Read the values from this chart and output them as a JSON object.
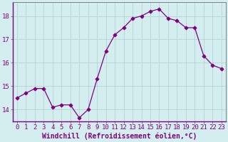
{
  "hours": [
    0,
    1,
    2,
    3,
    4,
    5,
    6,
    7,
    8,
    9,
    10,
    11,
    12,
    13,
    14,
    15,
    16,
    17,
    18,
    19,
    20,
    21,
    22,
    23
  ],
  "values": [
    14.5,
    14.7,
    14.9,
    14.9,
    14.1,
    14.2,
    14.2,
    13.65,
    14.0,
    15.3,
    16.5,
    17.2,
    17.5,
    17.9,
    18.0,
    18.2,
    18.3,
    17.9,
    17.8,
    17.5,
    17.5,
    16.3,
    15.9,
    15.75
  ],
  "line_color": "#800080",
  "marker": "D",
  "marker_size": 2.5,
  "bg_color": "#d4eef0",
  "grid_color": "#b8d8dc",
  "xlabel": "Windchill (Refroidissement éolien,°C)",
  "ylim": [
    13.5,
    18.6
  ],
  "xlim": [
    -0.5,
    23.5
  ],
  "yticks": [
    14,
    15,
    16,
    17,
    18
  ],
  "xtick_labels": [
    "0",
    "1",
    "2",
    "3",
    "4",
    "5",
    "6",
    "7",
    "8",
    "9",
    "10",
    "11",
    "12",
    "13",
    "14",
    "15",
    "16",
    "17",
    "18",
    "19",
    "20",
    "21",
    "22",
    "23"
  ],
  "tick_color": "#800080",
  "label_color": "#800080",
  "spine_color": "#808080",
  "axis_line_color": "#800080",
  "font_size_xlabel": 7.0,
  "font_size_ticks": 6.5
}
